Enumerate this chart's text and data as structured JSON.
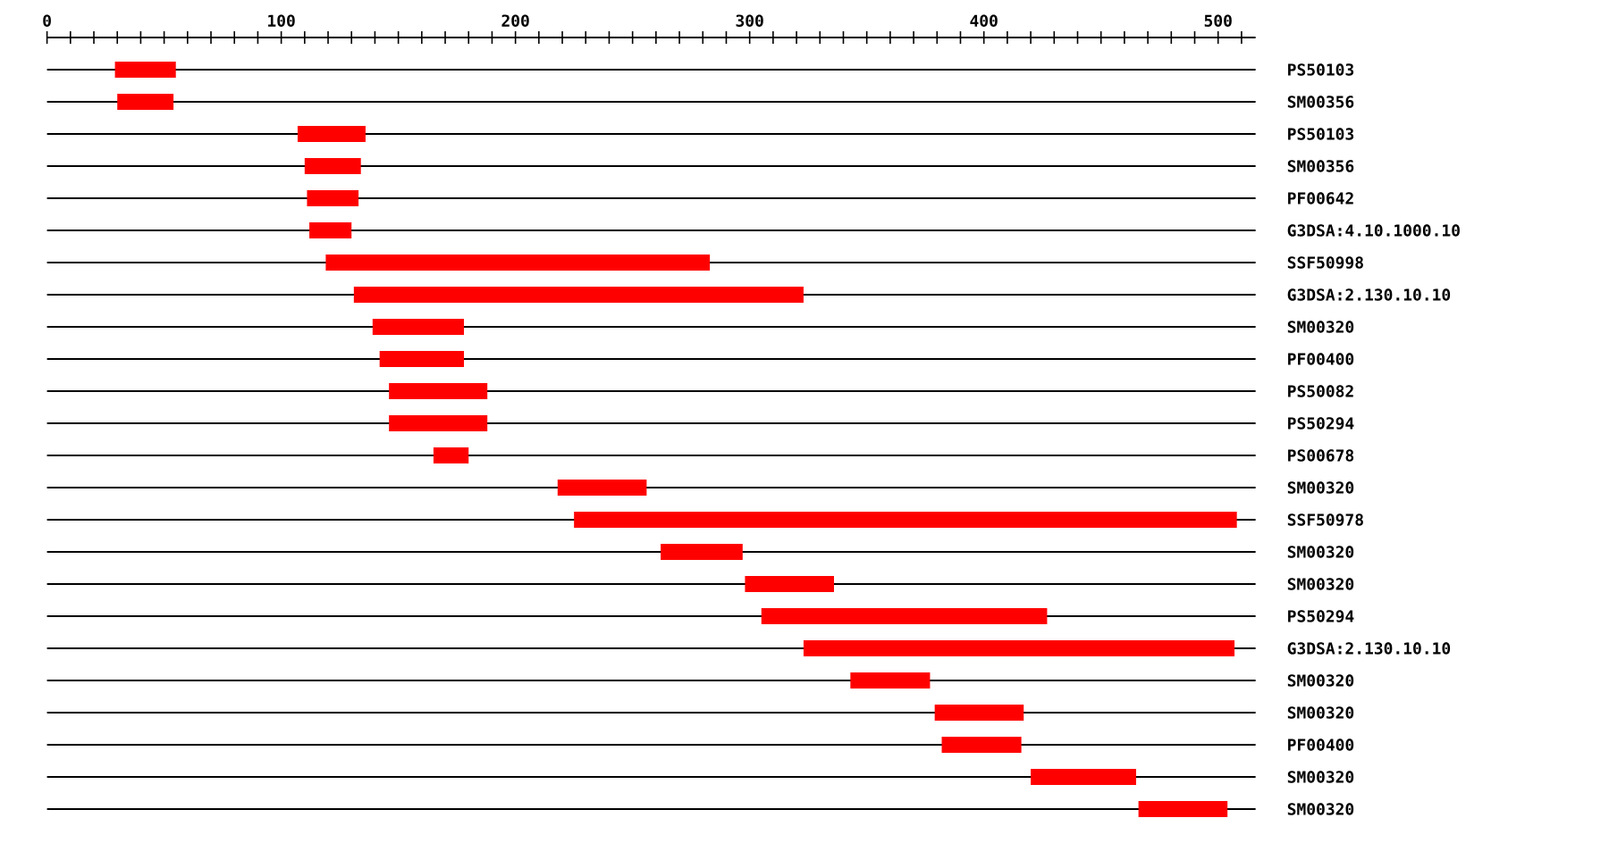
{
  "chart_data": {
    "type": "bar",
    "orientation": "horizontal",
    "color": "#ff0000",
    "grid": "y",
    "categories": [
      "PS50103",
      "SM00356",
      "PS50103",
      "SM00356",
      "PF00642",
      "G3DSA:4.10.1000.10",
      "SSF50998",
      "G3DSA:2.130.10.10",
      "SM00320",
      "PF00400",
      "PS50082",
      "PS50294",
      "PS00678",
      "SM00320",
      "SSF50978",
      "SM00320",
      "SM00320",
      "PS50294",
      "G3DSA:2.130.10.10",
      "SM00320",
      "SM00320",
      "PF00400",
      "SM00320",
      "SM00320"
    ],
    "base": [
      29,
      30,
      107,
      110,
      111,
      112,
      119,
      131,
      139,
      142,
      146,
      146,
      165,
      218,
      225,
      262,
      298,
      305,
      323,
      343,
      379,
      382,
      420,
      466
    ],
    "values": [
      26,
      24,
      29,
      24,
      22,
      18,
      164,
      192,
      39,
      36,
      42,
      42,
      15,
      38,
      283,
      35,
      38,
      122,
      184,
      34,
      38,
      34,
      45,
      38
    ],
    "xlim": [
      0,
      516
    ],
    "xticks": [
      0,
      {
        "value": 10,
        "label": null
      },
      {
        "value": 20,
        "label": null
      },
      {
        "value": 30,
        "label": null
      },
      {
        "value": 40,
        "label": null
      },
      {
        "value": 50,
        "label": null
      },
      {
        "value": 60,
        "label": null
      },
      {
        "value": 70,
        "label": null
      },
      {
        "value": 80,
        "label": null
      },
      {
        "value": 90,
        "label": null
      },
      100,
      {
        "value": 110,
        "label": null
      },
      {
        "value": 120,
        "label": null
      },
      {
        "value": 130,
        "label": null
      },
      {
        "value": 140,
        "label": null
      },
      {
        "value": 150,
        "label": null
      },
      {
        "value": 160,
        "label": null
      },
      {
        "value": 170,
        "label": null
      },
      {
        "value": 180,
        "label": null
      },
      {
        "value": 190,
        "label": null
      },
      200,
      {
        "value": 210,
        "label": null
      },
      {
        "value": 220,
        "label": null
      },
      {
        "value": 230,
        "label": null
      },
      {
        "value": 240,
        "label": null
      },
      {
        "value": 250,
        "label": null
      },
      {
        "value": 260,
        "label": null
      },
      {
        "value": 270,
        "label": null
      },
      {
        "value": 280,
        "label": null
      },
      {
        "value": 290,
        "label": null
      },
      300,
      {
        "value": 310,
        "label": null
      },
      {
        "value": 320,
        "label": null
      },
      {
        "value": 330,
        "label": null
      },
      {
        "value": 340,
        "label": null
      },
      {
        "value": 350,
        "label": null
      },
      {
        "value": 360,
        "label": null
      },
      {
        "value": 370,
        "label": null
      },
      {
        "value": 380,
        "label": null
      },
      {
        "value": 390,
        "label": null
      },
      400,
      {
        "value": 410,
        "label": null
      },
      {
        "value": 420,
        "label": null
      },
      {
        "value": 430,
        "label": null
      },
      {
        "value": 440,
        "label": null
      },
      {
        "value": 450,
        "label": null
      },
      {
        "value": 460,
        "label": null
      },
      {
        "value": 470,
        "label": null
      },
      {
        "value": 480,
        "label": null
      },
      {
        "value": 490,
        "label": null
      },
      500,
      {
        "value": 510,
        "label": null
      }
    ]
  }
}
